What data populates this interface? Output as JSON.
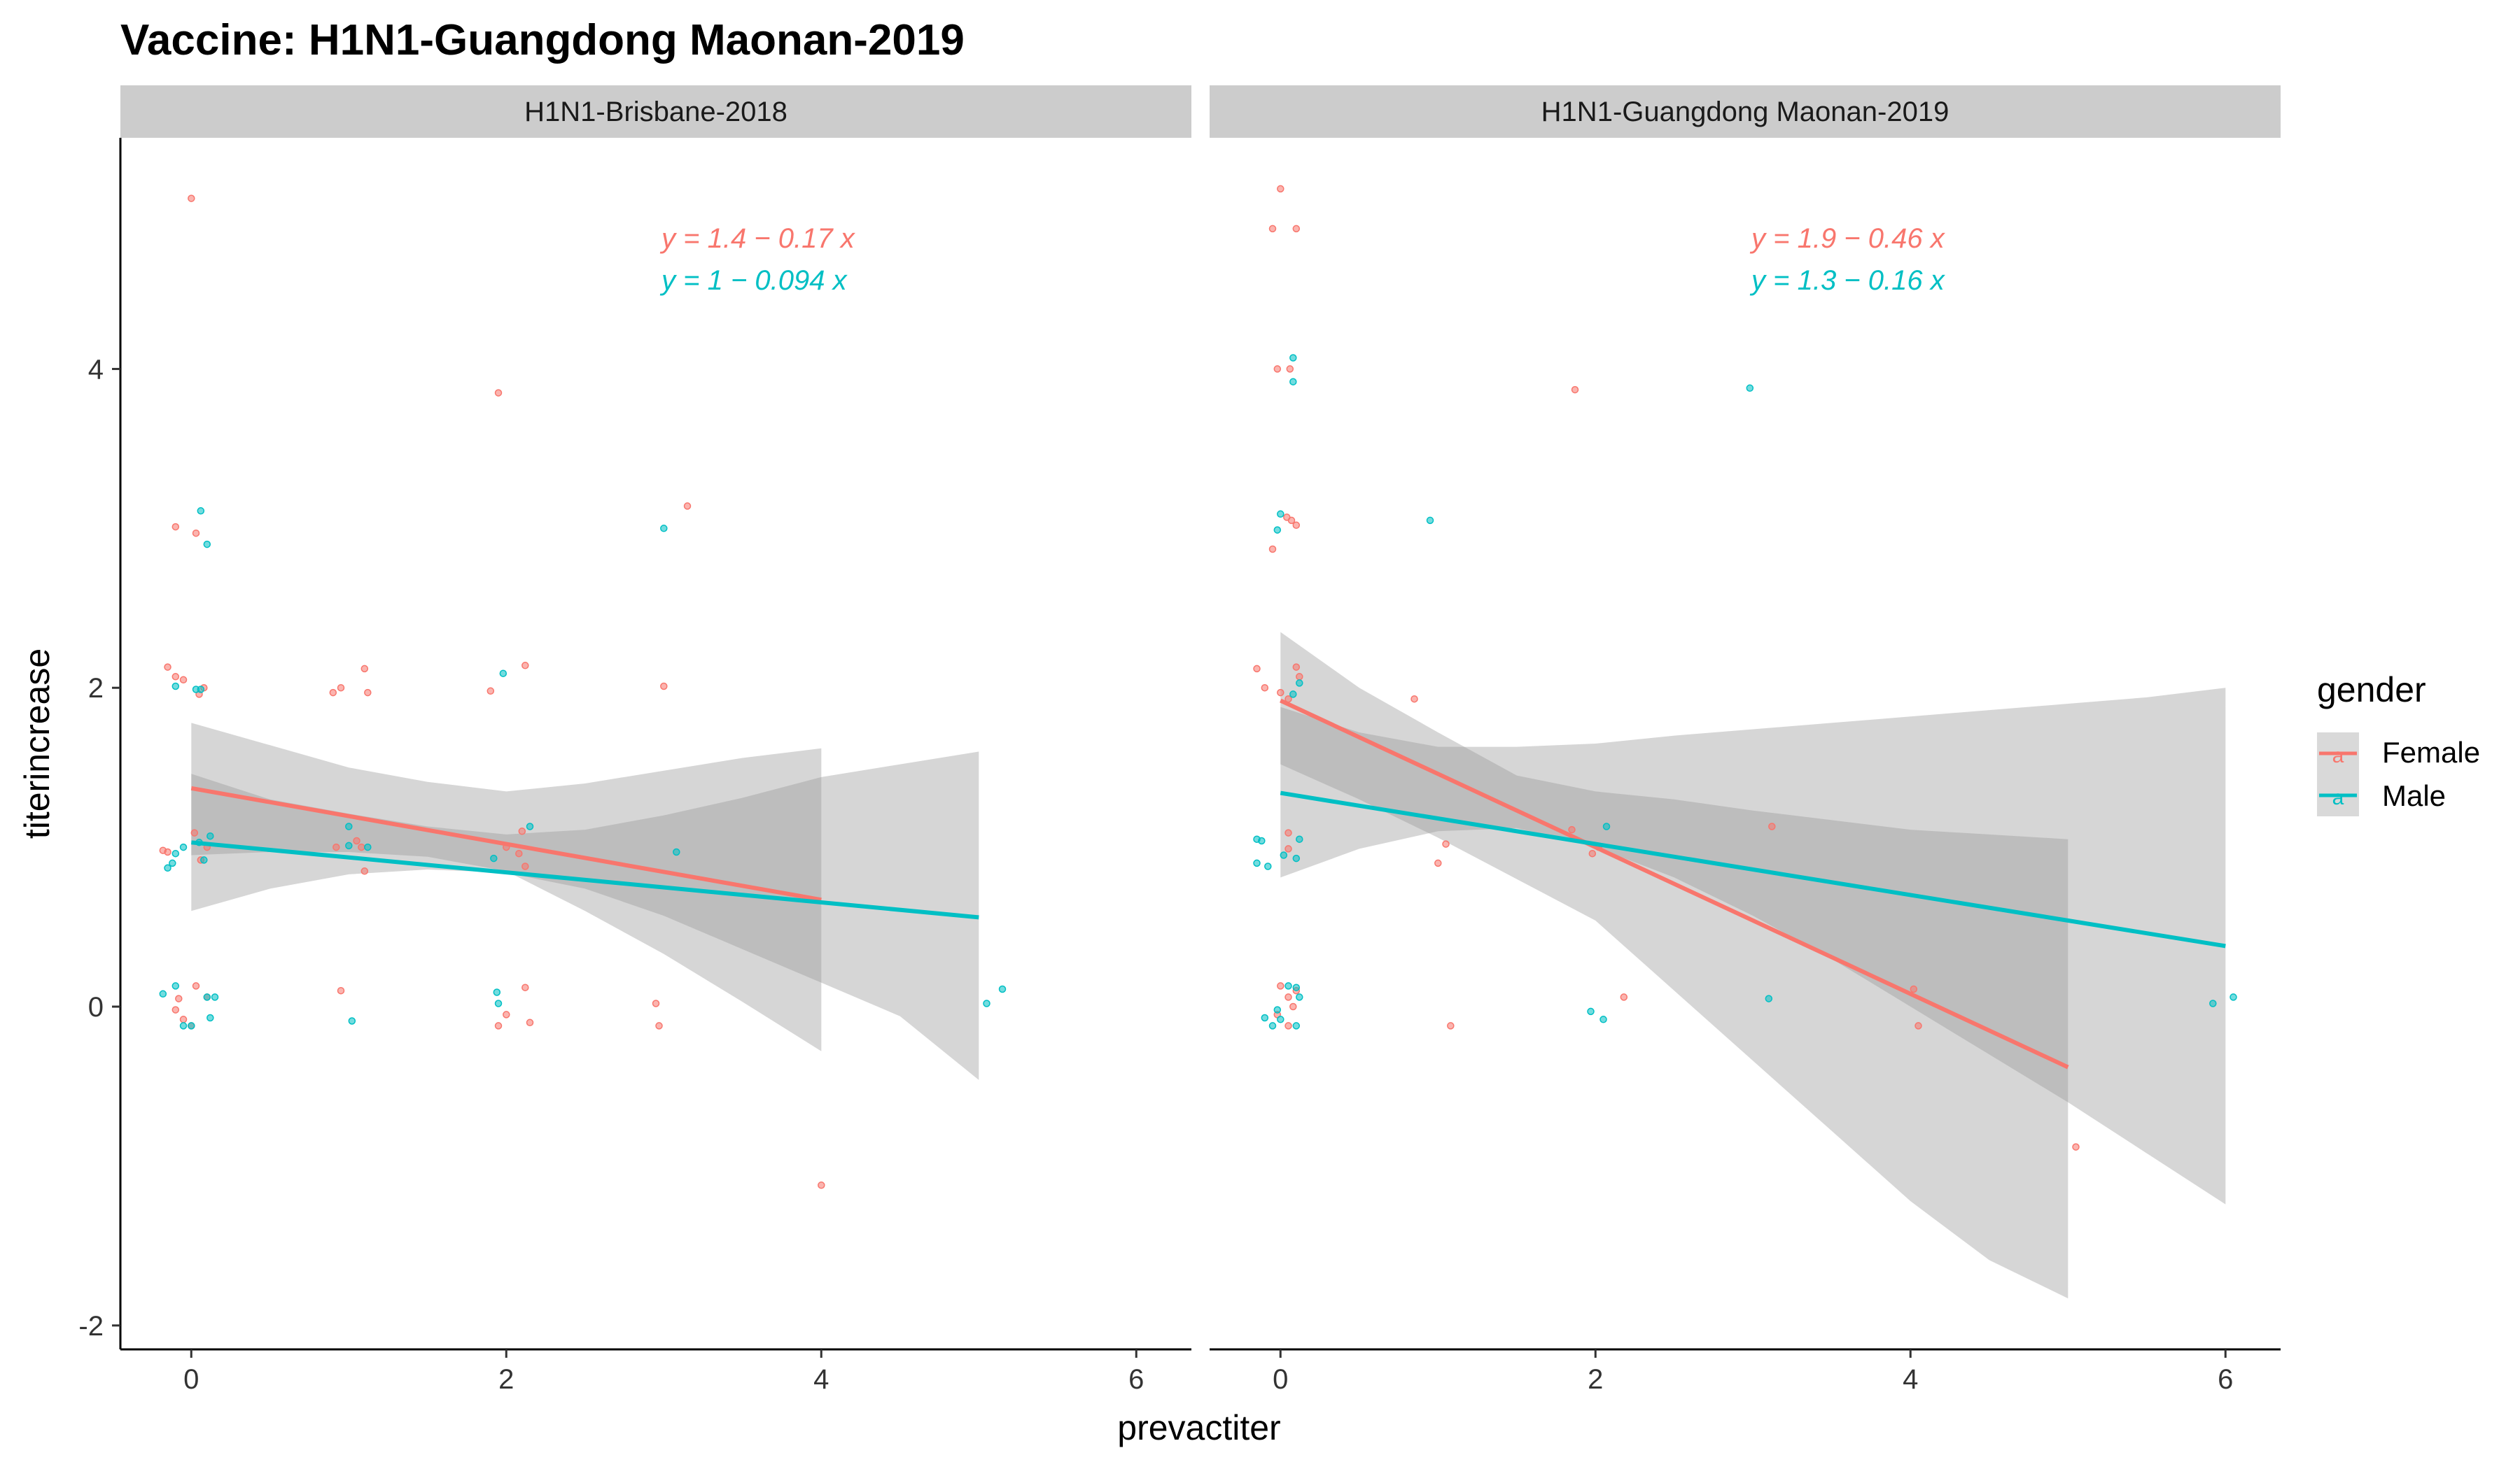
{
  "colors": {
    "female": "#F8766D",
    "male": "#00BFC4",
    "ribbon": "#999999",
    "strip": "#CCCCCC"
  },
  "chart_data": {
    "type": "scatter",
    "title": "Vaccine: H1N1-Guangdong Maonan-2019",
    "xlabel": "prevactiter",
    "ylabel": "titerincrease",
    "xlim": [
      -0.45,
      6.35
    ],
    "ylim": [
      -2.15,
      5.45
    ],
    "x_ticks": [
      0,
      2,
      4,
      6
    ],
    "y_ticks": [
      -2,
      0,
      2,
      4
    ],
    "grid": false,
    "legend": {
      "title": "gender",
      "position": "right",
      "entries": [
        "Female",
        "Male"
      ]
    },
    "panels": [
      {
        "strip": "H1N1-Brisbane-2018",
        "equations": [
          {
            "series": "Female",
            "label": "y = 1.4 − 0.17 x"
          },
          {
            "series": "Male",
            "label": "y = 1 − 0.094 x"
          }
        ],
        "series": [
          {
            "name": "Female",
            "fit": {
              "intercept": 1.37,
              "slope": -0.175,
              "x_range": [
                0,
                4
              ]
            },
            "ribbon": [
              [
                0,
                0.95,
                1.78
              ],
              [
                0.5,
                0.97,
                1.64
              ],
              [
                1,
                0.97,
                1.5
              ],
              [
                1.5,
                0.94,
                1.41
              ],
              [
                2,
                0.85,
                1.35
              ],
              [
                2.5,
                0.6,
                1.4
              ],
              [
                3,
                0.33,
                1.48
              ],
              [
                3.5,
                0.03,
                1.56
              ],
              [
                4,
                -0.28,
                1.62
              ]
            ],
            "points": [
              [
                -0.15,
                2.13
              ],
              [
                -0.1,
                2.07
              ],
              [
                -0.05,
                2.05
              ],
              [
                0.05,
                1.96
              ],
              [
                0.08,
                2.0
              ],
              [
                0.0,
                5.07
              ],
              [
                -0.1,
                3.01
              ],
              [
                0.03,
                2.97
              ],
              [
                -0.18,
                0.98
              ],
              [
                -0.15,
                0.97
              ],
              [
                0.02,
                1.09
              ],
              [
                0.06,
                0.92
              ],
              [
                0.1,
                1.0
              ],
              [
                0.03,
                0.13
              ],
              [
                -0.08,
                0.05
              ],
              [
                0.1,
                0.06
              ],
              [
                -0.1,
                -0.02
              ],
              [
                0.0,
                -0.12
              ],
              [
                -0.05,
                -0.08
              ],
              [
                0.9,
                1.97
              ],
              [
                0.95,
                2.0
              ],
              [
                1.1,
                2.12
              ],
              [
                1.12,
                1.97
              ],
              [
                0.92,
                1.0
              ],
              [
                1.05,
                1.04
              ],
              [
                1.1,
                0.85
              ],
              [
                1.08,
                1.0
              ],
              [
                0.95,
                0.1
              ],
              [
                1.95,
                3.85
              ],
              [
                1.9,
                1.98
              ],
              [
                2.12,
                2.14
              ],
              [
                2.0,
                1.0
              ],
              [
                2.1,
                1.1
              ],
              [
                2.08,
                0.96
              ],
              [
                2.12,
                0.88
              ],
              [
                2.0,
                -0.05
              ],
              [
                1.95,
                -0.12
              ],
              [
                2.12,
                0.12
              ],
              [
                2.15,
                -0.1
              ],
              [
                3.0,
                2.01
              ],
              [
                3.15,
                3.14
              ],
              [
                2.95,
                0.02
              ],
              [
                2.97,
                -0.12
              ],
              [
                4.0,
                -1.12
              ]
            ]
          },
          {
            "name": "Male",
            "fit": {
              "intercept": 1.03,
              "slope": -0.094,
              "x_range": [
                0,
                5
              ]
            },
            "ribbon": [
              [
                0,
                0.6,
                1.46
              ],
              [
                0.5,
                0.74,
                1.3
              ],
              [
                1,
                0.83,
                1.21
              ],
              [
                1.5,
                0.86,
                1.13
              ],
              [
                2,
                0.84,
                1.08
              ],
              [
                2.5,
                0.74,
                1.11
              ],
              [
                3,
                0.57,
                1.2
              ],
              [
                3.5,
                0.36,
                1.31
              ],
              [
                4,
                0.15,
                1.44
              ],
              [
                4.5,
                -0.06,
                1.52
              ],
              [
                5,
                -0.46,
                1.6
              ]
            ],
            "points": [
              [
                0.06,
                3.11
              ],
              [
                0.1,
                2.9
              ],
              [
                0.03,
                1.99
              ],
              [
                0.06,
                1.99
              ],
              [
                -0.1,
                2.01
              ],
              [
                -0.15,
                0.87
              ],
              [
                -0.12,
                0.9
              ],
              [
                -0.1,
                0.96
              ],
              [
                0.08,
                0.92
              ],
              [
                0.12,
                1.07
              ],
              [
                0.05,
                1.03
              ],
              [
                -0.05,
                1.0
              ],
              [
                -0.18,
                0.08
              ],
              [
                -0.1,
                0.13
              ],
              [
                -0.05,
                -0.12
              ],
              [
                0.0,
                -0.12
              ],
              [
                0.1,
                0.06
              ],
              [
                0.12,
                -0.07
              ],
              [
                0.15,
                0.06
              ],
              [
                1.0,
                1.01
              ],
              [
                1.12,
                1.0
              ],
              [
                1.02,
                -0.09
              ],
              [
                1.0,
                1.13
              ],
              [
                1.94,
                0.09
              ],
              [
                1.95,
                0.02
              ],
              [
                1.98,
                2.09
              ],
              [
                2.15,
                1.13
              ],
              [
                1.92,
                0.93
              ],
              [
                3.0,
                3.0
              ],
              [
                3.08,
                0.97
              ],
              [
                5.05,
                0.02
              ],
              [
                5.15,
                0.11
              ]
            ]
          }
        ]
      },
      {
        "strip": "H1N1-Guangdong Maonan-2019",
        "equations": [
          {
            "series": "Female",
            "label": "y = 1.9 − 0.46 x"
          },
          {
            "series": "Male",
            "label": "y = 1.3 − 0.16 x"
          }
        ],
        "series": [
          {
            "name": "Female",
            "fit": {
              "intercept": 1.92,
              "slope": -0.46,
              "x_range": [
                0,
                5
              ]
            },
            "ribbon": [
              [
                0,
                1.52,
                2.35
              ],
              [
                0.5,
                1.3,
                2.0
              ],
              [
                1,
                1.06,
                1.72
              ],
              [
                1.5,
                0.8,
                1.45
              ],
              [
                2,
                0.54,
                1.35
              ],
              [
                2.5,
                0.1,
                1.3
              ],
              [
                3,
                -0.34,
                1.23
              ],
              [
                3.5,
                -0.78,
                1.17
              ],
              [
                4,
                -1.22,
                1.11
              ],
              [
                4.5,
                -1.59,
                1.08
              ],
              [
                5,
                -1.83,
                1.05
              ]
            ],
            "points": [
              [
                0.0,
                5.13
              ],
              [
                -0.05,
                4.88
              ],
              [
                0.1,
                4.88
              ],
              [
                -0.02,
                4.0
              ],
              [
                0.06,
                4.0
              ],
              [
                0.04,
                3.07
              ],
              [
                0.07,
                3.05
              ],
              [
                0.1,
                3.02
              ],
              [
                -0.05,
                2.87
              ],
              [
                -0.15,
                2.12
              ],
              [
                -0.1,
                2.0
              ],
              [
                0.0,
                1.97
              ],
              [
                0.05,
                1.93
              ],
              [
                0.1,
                2.13
              ],
              [
                0.12,
                2.07
              ],
              [
                0.05,
                1.09
              ],
              [
                0.05,
                0.99
              ],
              [
                0.0,
                0.13
              ],
              [
                0.05,
                0.06
              ],
              [
                0.08,
                0.0
              ],
              [
                -0.02,
                -0.05
              ],
              [
                0.05,
                -0.12
              ],
              [
                0.1,
                0.1
              ],
              [
                0.85,
                1.93
              ],
              [
                1.05,
                1.02
              ],
              [
                1.0,
                0.9
              ],
              [
                1.08,
                -0.12
              ],
              [
                1.87,
                3.87
              ],
              [
                1.85,
                1.11
              ],
              [
                1.98,
                0.96
              ],
              [
                2.02,
                1.0
              ],
              [
                2.18,
                0.06
              ],
              [
                3.12,
                1.13
              ],
              [
                4.02,
                0.11
              ],
              [
                4.05,
                -0.12
              ],
              [
                5.05,
                -0.88
              ]
            ]
          },
          {
            "name": "Male",
            "fit": {
              "intercept": 1.34,
              "slope": -0.16,
              "x_range": [
                0,
                6
              ]
            },
            "ribbon": [
              [
                0,
                0.81,
                1.88
              ],
              [
                0.5,
                0.99,
                1.72
              ],
              [
                1,
                1.1,
                1.63
              ],
              [
                1.5,
                1.12,
                1.63
              ],
              [
                2,
                1.0,
                1.65
              ],
              [
                2.5,
                0.81,
                1.7
              ],
              [
                3,
                0.57,
                1.74
              ],
              [
                3.5,
                0.3,
                1.78
              ],
              [
                4,
                0.0,
                1.82
              ],
              [
                4.5,
                -0.3,
                1.86
              ],
              [
                5,
                -0.6,
                1.9
              ],
              [
                5.5,
                -0.92,
                1.94
              ],
              [
                6,
                -1.24,
                2.0
              ]
            ],
            "points": [
              [
                0.08,
                4.07
              ],
              [
                0.08,
                3.92
              ],
              [
                0.0,
                3.09
              ],
              [
                -0.02,
                2.99
              ],
              [
                0.12,
                2.03
              ],
              [
                0.08,
                1.96
              ],
              [
                -0.15,
                1.05
              ],
              [
                -0.12,
                1.04
              ],
              [
                -0.15,
                0.9
              ],
              [
                -0.08,
                0.88
              ],
              [
                0.02,
                0.95
              ],
              [
                0.12,
                1.05
              ],
              [
                0.1,
                0.93
              ],
              [
                0.05,
                0.13
              ],
              [
                0.1,
                0.12
              ],
              [
                0.12,
                0.06
              ],
              [
                -0.02,
                -0.02
              ],
              [
                0.0,
                -0.08
              ],
              [
                -0.1,
                -0.07
              ],
              [
                -0.05,
                -0.12
              ],
              [
                0.1,
                -0.12
              ],
              [
                0.95,
                3.05
              ],
              [
                2.07,
                1.13
              ],
              [
                1.97,
                -0.03
              ],
              [
                2.05,
                -0.08
              ],
              [
                2.98,
                3.88
              ],
              [
                3.1,
                0.05
              ],
              [
                5.92,
                0.02
              ],
              [
                6.05,
                0.06
              ]
            ]
          }
        ]
      }
    ]
  }
}
